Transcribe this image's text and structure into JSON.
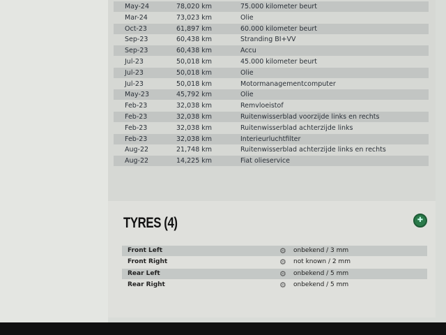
{
  "maintenance": [
    {
      "date": "May-24",
      "km": "78,020 km",
      "desc": "75.000 kilometer beurt"
    },
    {
      "date": "Mar-24",
      "km": "73,023 km",
      "desc": "Olie"
    },
    {
      "date": "Oct-23",
      "km": "61,897 km",
      "desc": "60.000 kilometer beurt"
    },
    {
      "date": "Sep-23",
      "km": "60,438 km",
      "desc": "Stranding BI+VV"
    },
    {
      "date": "Sep-23",
      "km": "60,438 km",
      "desc": "Accu"
    },
    {
      "date": "Jul-23",
      "km": "50,018 km",
      "desc": "45.000 kilometer beurt"
    },
    {
      "date": "Jul-23",
      "km": "50,018 km",
      "desc": "Olie"
    },
    {
      "date": "Jul-23",
      "km": "50,018 km",
      "desc": "Motormanagementcomputer"
    },
    {
      "date": "May-23",
      "km": "45,792 km",
      "desc": "Olie"
    },
    {
      "date": "Feb-23",
      "km": "32,038 km",
      "desc": "Remvloeistof"
    },
    {
      "date": "Feb-23",
      "km": "32,038 km",
      "desc": "Ruitenwisserblad voorzijde links en rechts"
    },
    {
      "date": "Feb-23",
      "km": "32,038 km",
      "desc": "Ruitenwisserblad achterzijde links"
    },
    {
      "date": "Feb-23",
      "km": "32,038 km",
      "desc": "Interieurluchtfilter"
    },
    {
      "date": "Aug-22",
      "km": "21,748 km",
      "desc": "Ruitenwisserblad achterzijde links en rechts"
    },
    {
      "date": "Aug-22",
      "km": "14,225 km",
      "desc": "Fiat olieservice"
    }
  ],
  "tyres": {
    "title": "TYRES (4)",
    "add_icon": "tyre-plus-icon",
    "accent": "#2a7a4a",
    "items": [
      {
        "position": "Front Left",
        "value": "onbekend / 3 mm"
      },
      {
        "position": "Front Right",
        "value": "not known / 2 mm"
      },
      {
        "position": "Rear Left",
        "value": "onbekend / 5 mm"
      },
      {
        "position": "Rear Right",
        "value": "onbekend / 5 mm"
      }
    ]
  }
}
